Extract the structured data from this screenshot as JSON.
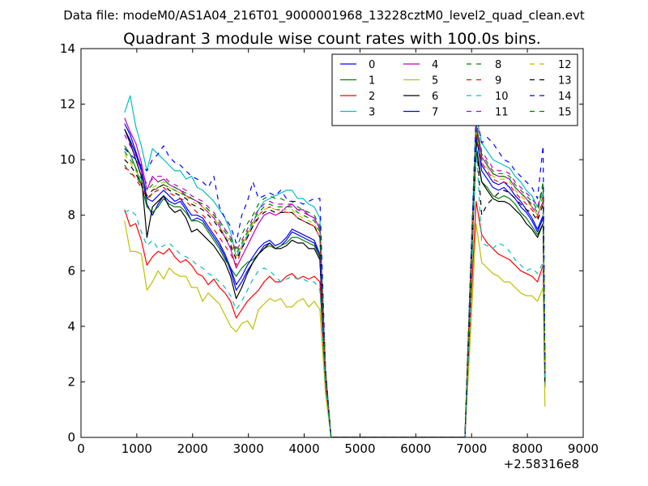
{
  "header": {
    "datafile": "Data file: modeM0/AS1A04_216T01_9000001968_13228cztM0_level2_quad_clean.evt"
  },
  "chart_data": {
    "type": "line",
    "title": "Quadrant 3 module wise count rates with 100.0s bins.",
    "xlabel": "",
    "ylabel": "",
    "x_offset_label": "+2.58316e8",
    "xlim": [
      0,
      9000
    ],
    "ylim": [
      0,
      14
    ],
    "xticks": [
      0,
      1000,
      2000,
      3000,
      4000,
      5000,
      6000,
      7000,
      8000,
      9000
    ],
    "yticks": [
      0,
      2,
      4,
      6,
      8,
      10,
      12,
      14
    ],
    "grid": false,
    "legend": {
      "placement": "top-right",
      "columns": 4
    },
    "x": [
      781,
      881,
      981,
      1081,
      1181,
      1281,
      1381,
      1481,
      1581,
      1681,
      1781,
      1881,
      1981,
      2081,
      2181,
      2281,
      2381,
      2481,
      2581,
      2681,
      2781,
      2881,
      2981,
      3081,
      3181,
      3281,
      3381,
      3481,
      3581,
      3681,
      3781,
      3881,
      3981,
      4081,
      4181,
      4281,
      4381,
      4481,
      4581,
      5581,
      6581,
      6881,
      6981,
      7081,
      7181,
      7281,
      7381,
      7481,
      7581,
      7681,
      7781,
      7881,
      7981,
      8081,
      8181,
      8281,
      8315
    ],
    "series": [
      {
        "name": "0",
        "color": "#0000ff",
        "dash": "solid",
        "values": [
          11.1,
          10.7,
          10.2,
          9.6,
          8.4,
          8.0,
          8.4,
          8.7,
          8.5,
          8.4,
          8.5,
          8.2,
          7.8,
          7.9,
          7.8,
          7.5,
          7.2,
          6.9,
          6.5,
          6.0,
          5.3,
          5.6,
          6.0,
          6.3,
          6.6,
          6.9,
          7.0,
          6.8,
          6.9,
          7.1,
          7.4,
          7.3,
          7.2,
          7.1,
          7.0,
          6.5,
          2.2,
          0,
          0,
          0,
          0,
          0,
          5.5,
          10.9,
          9.6,
          9.3,
          9.0,
          8.9,
          9.0,
          8.8,
          8.6,
          8.3,
          8.1,
          7.8,
          7.4,
          7.9,
          2.3
        ]
      },
      {
        "name": "1",
        "color": "#008000",
        "dash": "solid",
        "values": [
          10.5,
          10.2,
          9.7,
          9.1,
          8.3,
          8.1,
          8.3,
          8.6,
          8.4,
          8.3,
          8.3,
          8.1,
          7.8,
          7.8,
          7.7,
          7.4,
          7.1,
          6.8,
          6.4,
          6.1,
          5.8,
          6.1,
          6.3,
          6.4,
          6.6,
          6.8,
          6.9,
          6.8,
          6.9,
          7.0,
          7.2,
          7.2,
          7.1,
          7.0,
          6.9,
          6.5,
          2.1,
          0,
          0,
          0,
          0,
          0,
          5.3,
          10.3,
          9.2,
          9.0,
          8.7,
          8.6,
          8.7,
          8.6,
          8.4,
          8.1,
          7.9,
          7.6,
          7.3,
          7.7,
          2.1
        ]
      },
      {
        "name": "2",
        "color": "#ff0000",
        "dash": "solid",
        "values": [
          8.2,
          7.6,
          7.7,
          7.1,
          6.2,
          6.5,
          6.7,
          6.6,
          6.8,
          6.5,
          6.3,
          6.4,
          6.2,
          5.9,
          5.8,
          5.5,
          5.7,
          5.4,
          5.2,
          4.9,
          4.3,
          4.6,
          4.9,
          5.1,
          5.3,
          5.6,
          5.8,
          5.6,
          5.6,
          5.8,
          5.9,
          5.7,
          5.8,
          5.7,
          5.8,
          5.6,
          1.9,
          0,
          0,
          0,
          0,
          0,
          4.5,
          8.5,
          7.3,
          7.0,
          6.8,
          6.6,
          6.5,
          6.4,
          6.2,
          6.0,
          5.9,
          5.8,
          5.6,
          6.2,
          1.8
        ]
      },
      {
        "name": "3",
        "color": "#00bfbf",
        "dash": "solid",
        "values": [
          11.7,
          12.3,
          11.2,
          10.5,
          9.6,
          10.4,
          10.2,
          10.0,
          9.8,
          9.6,
          9.6,
          9.3,
          9.4,
          9.0,
          8.9,
          8.7,
          8.5,
          8.2,
          7.9,
          7.4,
          6.5,
          6.9,
          7.3,
          7.7,
          8.2,
          8.5,
          8.6,
          8.7,
          8.8,
          8.9,
          8.9,
          8.6,
          8.6,
          8.4,
          8.3,
          7.9,
          2.5,
          0,
          0,
          0,
          0,
          0,
          6.0,
          11.6,
          10.6,
          10.3,
          10.0,
          9.9,
          9.8,
          9.7,
          9.4,
          9.2,
          8.9,
          8.7,
          8.3,
          8.8,
          2.5
        ]
      },
      {
        "name": "4",
        "color": "#bf00bf",
        "dash": "solid",
        "values": [
          11.5,
          11.0,
          10.6,
          9.9,
          8.9,
          9.4,
          9.2,
          9.3,
          9.1,
          9.0,
          8.9,
          8.7,
          8.6,
          8.5,
          8.3,
          8.1,
          7.9,
          7.6,
          7.2,
          6.8,
          6.1,
          6.5,
          6.9,
          7.3,
          7.7,
          8.0,
          8.1,
          8.0,
          8.1,
          8.3,
          8.4,
          8.2,
          8.2,
          8.0,
          7.9,
          7.5,
          2.4,
          0,
          0,
          0,
          0,
          0,
          5.8,
          11.2,
          10.1,
          9.8,
          9.5,
          9.4,
          9.4,
          9.3,
          9.0,
          8.8,
          8.6,
          8.3,
          8.0,
          8.5,
          2.4
        ]
      },
      {
        "name": "5",
        "color": "#bfbf00",
        "dash": "solid",
        "values": [
          7.8,
          6.7,
          6.7,
          6.6,
          5.3,
          5.6,
          6.0,
          5.7,
          6.1,
          5.9,
          5.8,
          5.8,
          5.4,
          5.4,
          4.9,
          5.2,
          5.0,
          4.8,
          4.4,
          4.0,
          3.8,
          4.1,
          4.2,
          3.9,
          4.6,
          4.8,
          5.0,
          4.9,
          5.0,
          4.7,
          4.7,
          4.9,
          5.0,
          4.7,
          4.9,
          4.6,
          1.6,
          0,
          0,
          0,
          0,
          0,
          3.7,
          7.7,
          6.3,
          6.1,
          5.9,
          5.8,
          5.6,
          5.6,
          5.4,
          5.2,
          5.1,
          5.1,
          4.9,
          5.4,
          1.1
        ]
      },
      {
        "name": "6",
        "color": "#000000",
        "dash": "solid",
        "values": [
          11.1,
          10.6,
          10.0,
          9.4,
          7.2,
          8.3,
          8.5,
          8.7,
          8.3,
          8.1,
          8.2,
          7.9,
          7.4,
          7.5,
          7.3,
          7.1,
          6.9,
          6.6,
          6.3,
          5.8,
          5.0,
          5.4,
          5.9,
          6.3,
          6.6,
          6.8,
          7.0,
          6.8,
          6.8,
          6.9,
          7.1,
          7.0,
          7.0,
          6.8,
          6.8,
          6.4,
          2.2,
          0,
          0,
          0,
          0,
          0,
          5.3,
          10.5,
          9.2,
          8.9,
          8.6,
          8.5,
          8.5,
          8.4,
          8.2,
          8.0,
          7.7,
          7.5,
          7.2,
          7.7,
          2.0
        ]
      },
      {
        "name": "7",
        "color": "#0000ff",
        "dash": "solid",
        "values": [
          11.3,
          10.9,
          10.3,
          9.7,
          8.6,
          8.5,
          8.7,
          8.9,
          8.7,
          8.5,
          8.6,
          8.3,
          8.0,
          8.0,
          7.9,
          7.6,
          7.3,
          7.0,
          6.6,
          6.1,
          5.5,
          5.8,
          6.2,
          6.5,
          6.8,
          7.0,
          7.1,
          6.9,
          7.0,
          7.2,
          7.5,
          7.4,
          7.3,
          7.2,
          7.1,
          6.6,
          2.3,
          0,
          0,
          0,
          0,
          0,
          5.6,
          11.1,
          9.8,
          9.5,
          9.2,
          9.1,
          9.2,
          9.0,
          8.7,
          8.5,
          8.2,
          7.9,
          7.5,
          8.0,
          2.3
        ]
      },
      {
        "name": "8",
        "color": "#008000",
        "dash": "dashed",
        "values": [
          9.8,
          9.5,
          9.4,
          9.1,
          8.5,
          8.8,
          9.0,
          9.1,
          9.0,
          8.9,
          8.8,
          8.7,
          8.6,
          8.5,
          8.4,
          8.2,
          8.0,
          7.8,
          7.5,
          7.2,
          6.8,
          7.3,
          7.7,
          8.0,
          8.4,
          8.6,
          8.7,
          8.6,
          8.6,
          8.5,
          8.5,
          8.3,
          8.2,
          8.1,
          8.0,
          7.6,
          2.4,
          0,
          0,
          0,
          0,
          0,
          5.9,
          11.3,
          10.2,
          9.9,
          9.6,
          9.5,
          9.5,
          9.4,
          9.1,
          8.9,
          8.7,
          8.5,
          8.2,
          9.2,
          2.5
        ]
      },
      {
        "name": "9",
        "color": "#ff0000",
        "dash": "dashed",
        "values": [
          9.7,
          9.6,
          9.3,
          9.0,
          8.6,
          8.8,
          8.9,
          9.0,
          8.8,
          8.7,
          8.6,
          8.5,
          8.3,
          8.1,
          8.0,
          7.8,
          7.5,
          7.2,
          6.9,
          6.6,
          6.2,
          6.8,
          7.2,
          7.6,
          8.0,
          8.2,
          8.3,
          8.2,
          8.2,
          8.1,
          8.1,
          7.9,
          7.8,
          7.7,
          7.6,
          7.2,
          2.3,
          0,
          0,
          0,
          0,
          0,
          5.7,
          11.0,
          9.9,
          9.6,
          9.3,
          9.2,
          9.2,
          9.1,
          8.8,
          8.6,
          8.4,
          8.2,
          7.9,
          8.7,
          2.3
        ]
      },
      {
        "name": "10",
        "color": "#00bfbf",
        "dash": "dashed",
        "values": [
          8.1,
          8.2,
          8.0,
          7.4,
          6.9,
          7.1,
          6.8,
          6.9,
          7.0,
          6.8,
          6.6,
          6.5,
          6.4,
          6.2,
          6.1,
          5.9,
          5.8,
          5.6,
          5.4,
          5.1,
          4.6,
          4.9,
          5.3,
          5.7,
          6.0,
          6.1,
          6.0,
          5.8,
          5.6,
          5.7,
          5.8,
          5.7,
          5.7,
          5.6,
          5.6,
          5.3,
          1.8,
          0,
          0,
          0,
          0,
          0,
          4.6,
          10.6,
          7.0,
          6.9,
          6.8,
          7.0,
          6.9,
          6.7,
          6.4,
          6.2,
          6.0,
          6.1,
          5.9,
          6.3,
          1.9
        ]
      },
      {
        "name": "11",
        "color": "#bf00bf",
        "dash": "dashed",
        "values": [
          10.9,
          10.5,
          10.1,
          9.6,
          9.1,
          9.3,
          9.4,
          9.4,
          9.2,
          9.1,
          9.0,
          8.9,
          8.7,
          8.6,
          8.5,
          8.3,
          8.1,
          7.8,
          7.5,
          7.2,
          6.7,
          7.1,
          7.5,
          7.9,
          8.2,
          8.4,
          8.5,
          8.4,
          8.4,
          8.4,
          8.4,
          8.2,
          8.1,
          8.0,
          7.9,
          7.5,
          2.4,
          0,
          0,
          0,
          0,
          0,
          5.9,
          11.4,
          10.3,
          10.0,
          9.7,
          9.6,
          9.6,
          9.5,
          9.2,
          9.0,
          8.8,
          8.6,
          8.3,
          9.0,
          2.5
        ]
      },
      {
        "name": "12",
        "color": "#bfbf00",
        "dash": "dashed",
        "values": [
          10.2,
          9.9,
          9.6,
          9.3,
          8.9,
          9.0,
          9.1,
          9.2,
          9.0,
          8.9,
          8.8,
          8.7,
          8.5,
          8.4,
          8.3,
          8.1,
          7.9,
          7.6,
          7.3,
          7.0,
          6.5,
          6.9,
          7.3,
          7.7,
          8.0,
          8.2,
          8.3,
          8.2,
          8.2,
          8.2,
          8.2,
          8.0,
          7.9,
          7.8,
          7.7,
          7.3,
          2.3,
          0,
          0,
          0,
          0,
          0,
          5.8,
          11.0,
          9.9,
          9.7,
          9.4,
          9.3,
          9.3,
          9.2,
          8.9,
          8.7,
          8.5,
          8.3,
          8.0,
          8.6,
          2.4
        ]
      },
      {
        "name": "13",
        "color": "#000000",
        "dash": "dashed",
        "values": [
          10.0,
          9.8,
          9.5,
          9.1,
          8.7,
          8.9,
          9.0,
          9.1,
          8.9,
          8.8,
          8.7,
          8.6,
          8.4,
          8.3,
          8.2,
          8.0,
          7.8,
          7.5,
          7.2,
          6.9,
          6.4,
          6.8,
          7.2,
          7.6,
          7.9,
          8.1,
          8.2,
          8.1,
          8.1,
          8.1,
          8.1,
          7.9,
          7.8,
          7.7,
          7.6,
          7.2,
          2.3,
          0,
          0,
          0,
          0,
          0,
          5.7,
          10.8,
          8.0,
          8.4,
          8.6,
          8.8,
          8.9,
          8.8,
          8.6,
          8.4,
          8.2,
          8.1,
          7.8,
          8.4,
          2.3
        ]
      },
      {
        "name": "14",
        "color": "#0000ff",
        "dash": "dashed",
        "values": [
          10.4,
          10.2,
          10.0,
          9.8,
          9.6,
          10.0,
          10.2,
          10.5,
          10.1,
          9.9,
          9.8,
          9.6,
          9.4,
          9.3,
          9.2,
          9.0,
          9.4,
          8.3,
          7.9,
          7.6,
          7.0,
          8.0,
          8.5,
          9.2,
          8.6,
          8.7,
          8.8,
          8.7,
          8.9,
          8.6,
          8.5,
          8.5,
          8.4,
          8.5,
          8.6,
          8.6,
          2.5,
          0,
          0,
          0,
          0,
          0,
          6.1,
          11.7,
          10.6,
          10.8,
          10.6,
          10.3,
          10.0,
          9.9,
          9.6,
          9.4,
          9.2,
          9.0,
          8.6,
          10.5,
          2.6
        ]
      },
      {
        "name": "15",
        "color": "#008000",
        "dash": "dashed",
        "values": [
          10.3,
          10.0,
          9.7,
          9.3,
          8.9,
          9.1,
          9.2,
          9.3,
          9.1,
          9.0,
          8.9,
          8.8,
          8.6,
          8.5,
          8.4,
          8.2,
          8.0,
          7.7,
          7.4,
          7.1,
          6.6,
          7.0,
          7.4,
          7.8,
          8.1,
          8.3,
          8.4,
          8.3,
          8.3,
          8.3,
          8.3,
          8.1,
          8.0,
          7.9,
          7.8,
          7.4,
          2.3,
          0,
          0,
          0,
          0,
          0,
          5.8,
          11.1,
          10.0,
          9.8,
          9.5,
          9.4,
          9.4,
          9.3,
          9.0,
          8.8,
          8.6,
          8.4,
          8.1,
          9.1,
          2.4
        ]
      }
    ]
  }
}
